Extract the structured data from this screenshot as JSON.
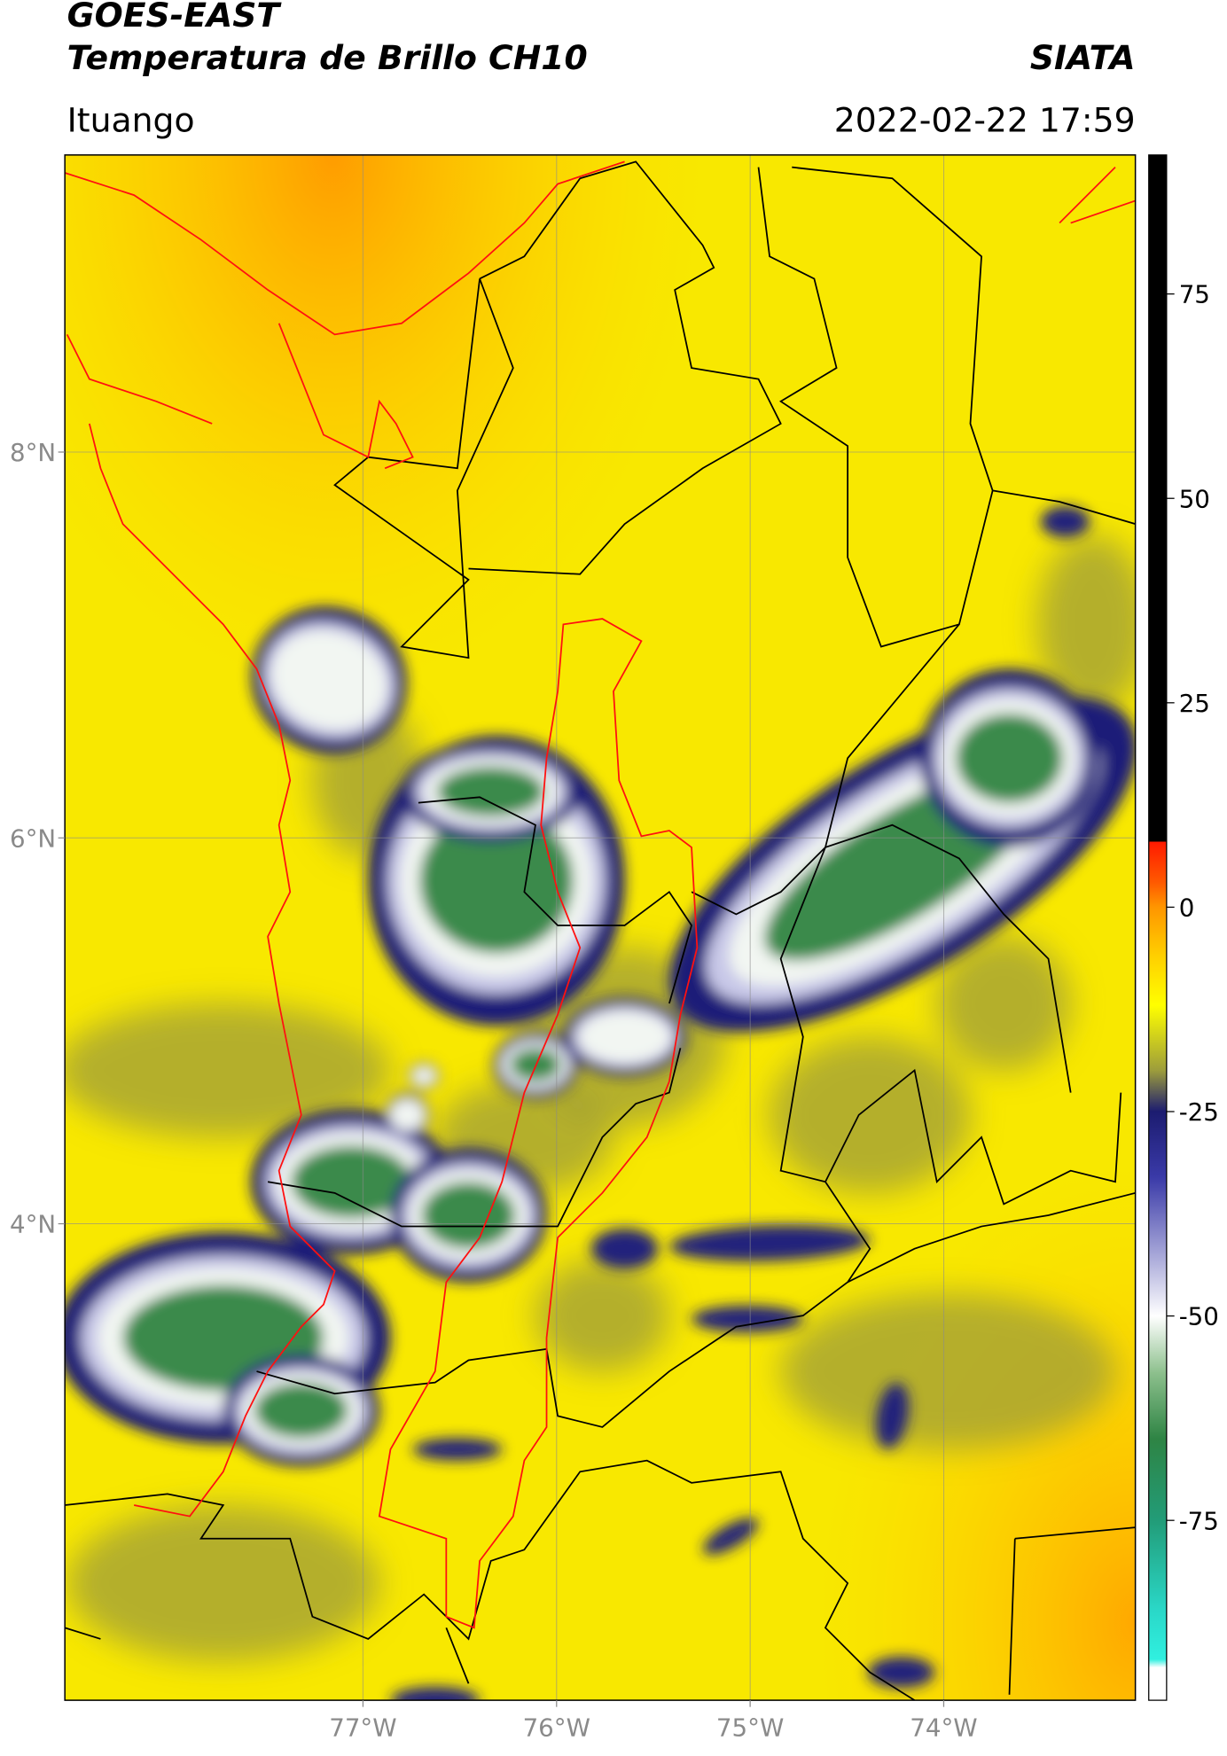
{
  "header": {
    "title": "GOES-EAST",
    "subtitle": "Temperatura de Brillo CH10",
    "source": "SIATA",
    "region": "Ituango",
    "datetime": "2022-02-22 17:59"
  },
  "map": {
    "lon_range": [
      -78.54,
      -73.01
    ],
    "lat_range": [
      1.53,
      9.54
    ],
    "grid": true,
    "lon_ticks": [
      {
        "value": -77,
        "label": "77°W"
      },
      {
        "value": -76,
        "label": "76°W"
      },
      {
        "value": -75,
        "label": "75°W"
      },
      {
        "value": -74,
        "label": "74°W"
      }
    ],
    "lat_ticks": [
      {
        "value": 8,
        "label": "8°N"
      },
      {
        "value": 6,
        "label": "6°N"
      },
      {
        "value": 4,
        "label": "4°N"
      }
    ]
  },
  "colorbar": {
    "range": [
      -97,
      92
    ],
    "ticks": [
      75,
      50,
      25,
      0,
      -25,
      -50,
      -75
    ],
    "stops": [
      [
        92,
        "#000000"
      ],
      [
        8,
        "#000000"
      ],
      [
        8,
        "#ff1a00"
      ],
      [
        3,
        "#ff5a00"
      ],
      [
        0,
        "#ff9600"
      ],
      [
        -6,
        "#ffd000"
      ],
      [
        -12,
        "#ffff00"
      ],
      [
        -20,
        "#9c9c3c"
      ],
      [
        -25,
        "#1c1c70"
      ],
      [
        -33,
        "#3a3aa8"
      ],
      [
        -44,
        "#b8b8e0"
      ],
      [
        -50,
        "#ffffff"
      ],
      [
        -57,
        "#8cbf8c"
      ],
      [
        -65,
        "#2e8444"
      ],
      [
        -75,
        "#229c78"
      ],
      [
        -86,
        "#2ad8c8"
      ],
      [
        -92,
        "#30f0e0"
      ],
      [
        -93,
        "#ffffff"
      ],
      [
        -97,
        "#ffffff"
      ]
    ]
  }
}
